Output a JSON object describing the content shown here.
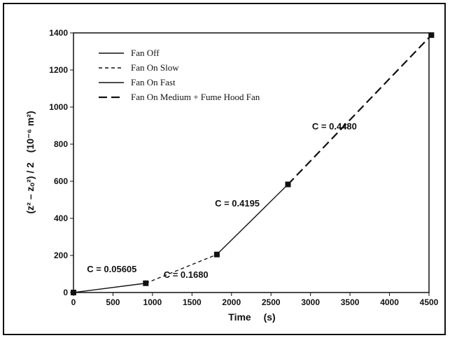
{
  "chart_data": {
    "type": "line",
    "xlabel": "Time",
    "xlabel_unit": "(s)",
    "ylabel_expr": "(z² – zₒ²) / 2",
    "ylabel_unit": "(10⁻⁶ m²)",
    "xlim": [
      0,
      4500
    ],
    "ylim": [
      0,
      1400
    ],
    "xticks": [
      0,
      500,
      1000,
      1500,
      2000,
      2500,
      3000,
      3500,
      4000,
      4500
    ],
    "yticks": [
      0,
      200,
      400,
      600,
      800,
      1000,
      1200,
      1400
    ],
    "grid": false,
    "legend_position": "top-left",
    "series": [
      {
        "name": "Fan Off",
        "style": "solid-thin",
        "x": [
          0,
          915
        ],
        "y": [
          0,
          50
        ]
      },
      {
        "name": "Fan On Slow",
        "style": "short-dash",
        "x": [
          915,
          1815
        ],
        "y": [
          50,
          205
        ]
      },
      {
        "name": "Fan On Fast",
        "style": "solid-thin",
        "x": [
          1815,
          2715
        ],
        "y": [
          205,
          583
        ]
      },
      {
        "name": "Fan On Medium + Fume Hood Fan",
        "style": "long-dash",
        "x": [
          2715,
          4530
        ],
        "y": [
          583,
          1388
        ]
      }
    ],
    "markers": {
      "x": [
        0,
        915,
        1815,
        2715,
        4530
      ],
      "y": [
        0,
        50,
        205,
        583,
        1388
      ]
    },
    "annotations": [
      {
        "text": "C = 0.05605",
        "x": 170,
        "y": 110
      },
      {
        "text": "C = 0.1680",
        "x": 1140,
        "y": 80
      },
      {
        "text": "C = 0.4195",
        "x": 1790,
        "y": 465
      },
      {
        "text": "C = 0.4480",
        "x": 3020,
        "y": 880
      }
    ]
  }
}
